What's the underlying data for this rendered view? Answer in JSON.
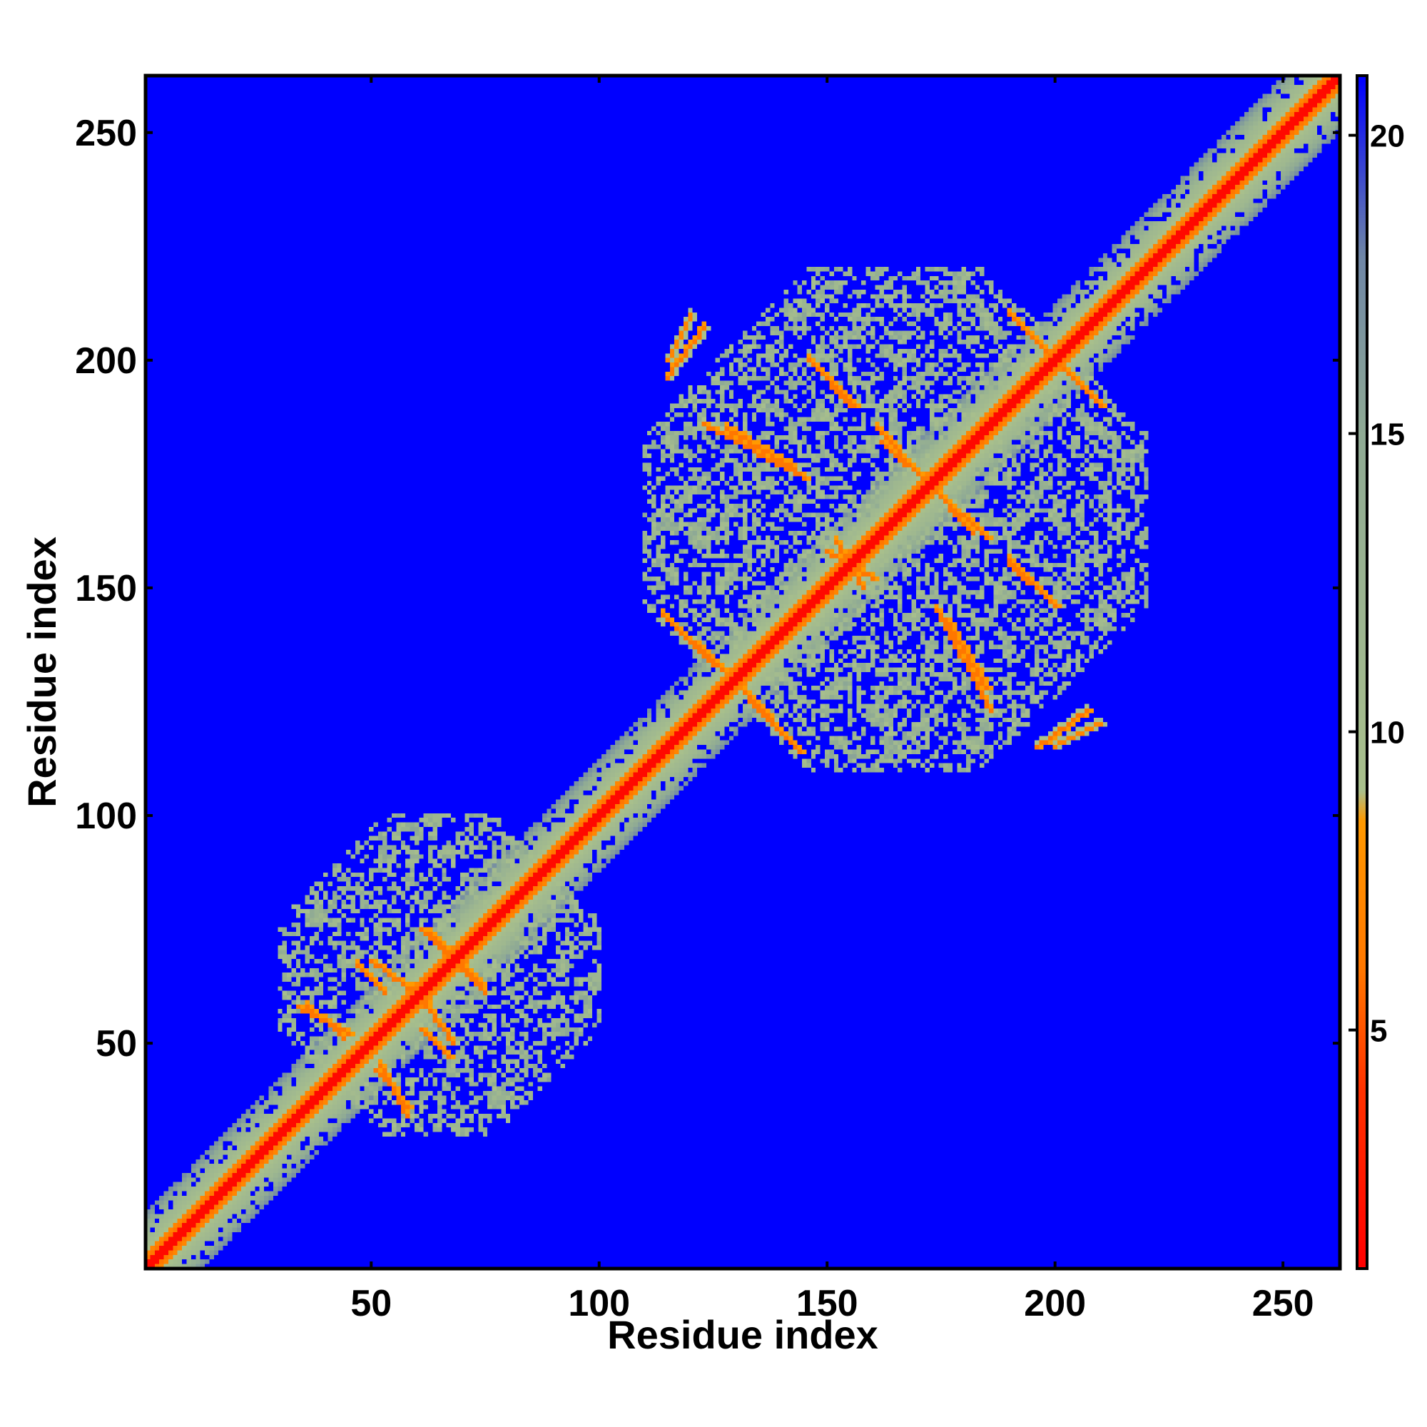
{
  "chart_data": {
    "type": "heatmap",
    "title": "",
    "xlabel": "Residue index",
    "ylabel": "Residue index",
    "n_residues": 262,
    "xlim": [
      1,
      262
    ],
    "ylim": [
      1,
      262
    ],
    "x_ticks": [
      50,
      100,
      150,
      200,
      250
    ],
    "y_ticks": [
      50,
      100,
      150,
      200,
      250
    ],
    "colorbar": {
      "ticks": [
        5,
        10,
        15,
        20
      ],
      "range": [
        1,
        21
      ],
      "stops": [
        {
          "value": 1,
          "color": "#ff0000"
        },
        {
          "value": 4,
          "color": "#ff3300"
        },
        {
          "value": 6,
          "color": "#ff7700"
        },
        {
          "value": 8.5,
          "color": "#ff9900"
        },
        {
          "value": 9,
          "color": "#a9c08c"
        },
        {
          "value": 15,
          "color": "#8faa94"
        },
        {
          "value": 18,
          "color": "#6f86a6"
        },
        {
          "value": 21,
          "color": "#0000ff"
        }
      ]
    },
    "grid": false,
    "description_features": {
      "diagonal": "strong band of low values along the diagonal across all residues",
      "domain_1": {
        "range": [
          30,
          100
        ]
      },
      "domain_2": {
        "range": [
          110,
          220
        ]
      },
      "background_value": 21
    },
    "contact_lines": [
      {
        "start": [
          34,
          58
        ],
        "end": [
          45,
          52
        ],
        "value": 6
      },
      {
        "start": [
          50,
          68
        ],
        "end": [
          62,
          59
        ],
        "value": 6
      },
      {
        "start": [
          61,
          75
        ],
        "end": [
          74,
          63
        ],
        "value": 6
      },
      {
        "start": [
          51,
          44
        ],
        "end": [
          58,
          36
        ],
        "value": 6
      },
      {
        "start": [
          61,
          53
        ],
        "end": [
          67,
          47
        ],
        "value": 6
      },
      {
        "start": [
          114,
          144
        ],
        "end": [
          127,
          132
        ],
        "value": 6
      },
      {
        "start": [
          123,
          186
        ],
        "end": [
          145,
          174
        ],
        "value": 6
      },
      {
        "start": [
          133,
          125
        ],
        "end": [
          144,
          114
        ],
        "value": 6
      },
      {
        "start": [
          147,
          199
        ],
        "end": [
          156,
          190
        ],
        "value": 6
      },
      {
        "start": [
          162,
          182
        ],
        "end": [
          185,
          161
        ],
        "value": 6
      },
      {
        "start": [
          150,
          158
        ],
        "end": [
          160,
          152
        ],
        "value": 6
      },
      {
        "start": [
          176,
          143
        ],
        "end": [
          185,
          128
        ],
        "value": 6
      },
      {
        "start": [
          190,
          155
        ],
        "end": [
          200,
          146
        ],
        "value": 6
      },
      {
        "start": [
          190,
          210
        ],
        "end": [
          210,
          190
        ],
        "value": 6
      },
      {
        "start": [
          196,
          115
        ],
        "end": [
          207,
          123
        ],
        "value": 6
      },
      {
        "start": [
          115,
          200
        ],
        "end": [
          120,
          210
        ],
        "value": 7
      }
    ]
  }
}
